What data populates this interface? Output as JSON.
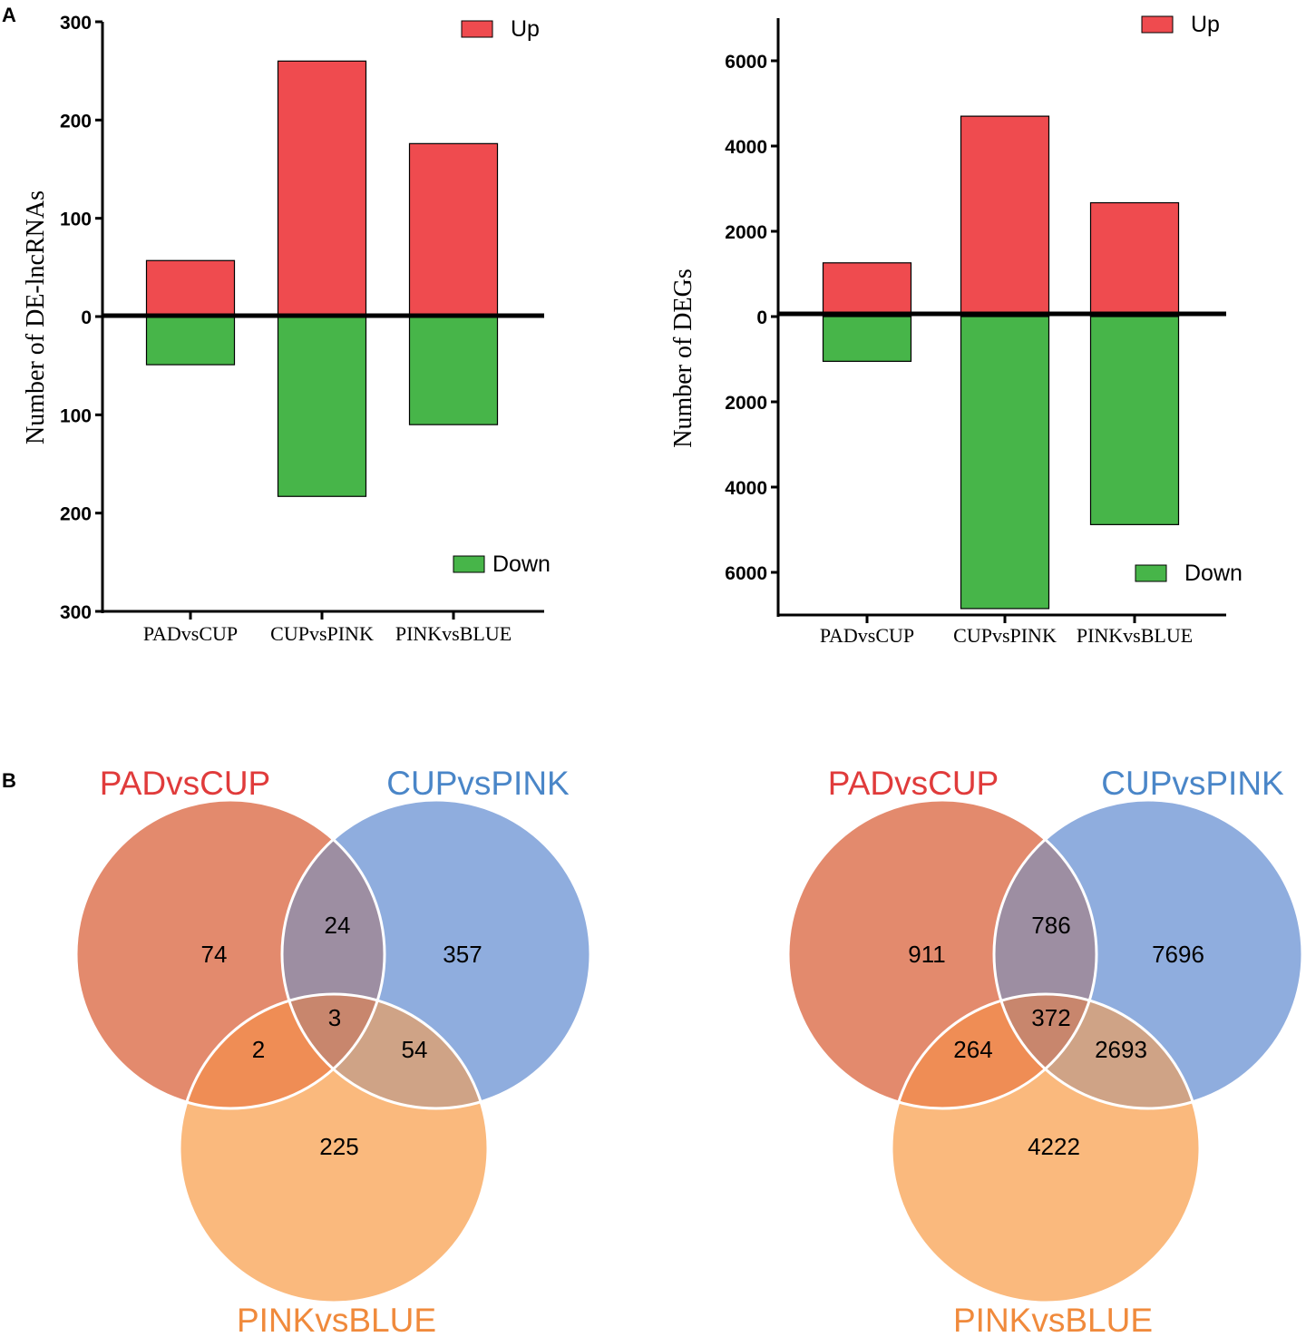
{
  "panel_labels": {
    "a": "A",
    "b": "B"
  },
  "colors": {
    "up": "#ef4b4f",
    "down": "#47b549",
    "venn_a": "#e38a6d",
    "venn_b": "#8fadde",
    "venn_c": "#fab97d",
    "title_a": "#e03b3b",
    "title_b": "#4a86c8",
    "title_c": "#f08a3c"
  },
  "chart_data": [
    {
      "type": "bar",
      "stacked_diverging": true,
      "ylabel": "Number of DE-lncRNAs",
      "categories": [
        "PADvsCUP",
        "CUPvsPINK",
        "PINKvsBLUE"
      ],
      "series": [
        {
          "name": "Up",
          "values": [
            57,
            260,
            176
          ]
        },
        {
          "name": "Down",
          "values": [
            -49,
            -183,
            -110
          ]
        }
      ],
      "ylim": [
        -300,
        300
      ],
      "ticks": [
        300,
        200,
        100,
        0,
        -100,
        -200,
        -300
      ],
      "tick_labels": [
        "300",
        "200",
        "100",
        "0",
        "100",
        "200",
        "300"
      ],
      "legend": {
        "up": "Up",
        "down": "Down"
      }
    },
    {
      "type": "bar",
      "stacked_diverging": true,
      "ylabel": "Number of DEGs",
      "categories": [
        "PADvsCUP",
        "CUPvsPINK",
        "PINKvsBLUE"
      ],
      "series": [
        {
          "name": "Up",
          "values": [
            1260,
            4700,
            2670
          ]
        },
        {
          "name": "Down",
          "values": [
            -1050,
            -6850,
            -4880
          ]
        }
      ],
      "ylim": [
        -7000,
        7000
      ],
      "ticks": [
        6000,
        4000,
        2000,
        0,
        -2000,
        -4000,
        -6000
      ],
      "tick_labels": [
        "6000",
        "4000",
        "2000",
        "0",
        "2000",
        "4000",
        "6000"
      ],
      "legend": {
        "up": "Up",
        "down": "Down"
      }
    }
  ],
  "venns": [
    {
      "sets": [
        "PADvsCUP",
        "CUPvsPINK",
        "PINKvsBLUE"
      ],
      "only_a": "74",
      "only_b": "357",
      "only_c": "225",
      "ab": "24",
      "ac": "2",
      "bc": "54",
      "abc": "3"
    },
    {
      "sets": [
        "PADvsCUP",
        "CUPvsPINK",
        "PINKvsBLUE"
      ],
      "only_a": "911",
      "only_b": "7696",
      "only_c": "4222",
      "ab": "786",
      "ac": "264",
      "bc": "2693",
      "abc": "372"
    }
  ]
}
